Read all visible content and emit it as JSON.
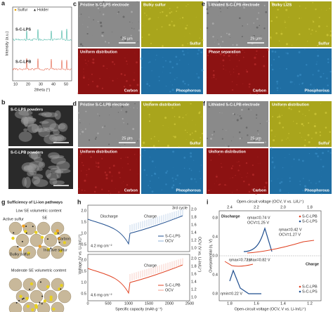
{
  "a": {
    "label": "a",
    "legend": [
      "Sulfur",
      "Holder"
    ],
    "series": [
      "S-C-LPS",
      "S-C-LPB"
    ],
    "xlabel": "2theta (°)",
    "ylabel": "Intensity (a.u.)",
    "xticks": [
      "10",
      "20",
      "30",
      "40",
      "50"
    ]
  },
  "b": {
    "label": "b",
    "images": [
      "S-C-LPS powders",
      "S-C-LPB powders"
    ]
  },
  "c": {
    "label": "c",
    "tiles": [
      {
        "top": "Pristine S-C-LPS electrode",
        "scale": "25 µm"
      },
      {
        "top": "Bulky sulfur",
        "bottom": "Sulfur"
      },
      {
        "top": "Uniform distribution",
        "bottom": "Carbon"
      },
      {
        "bottom": "Phosphorous"
      }
    ]
  },
  "d": {
    "label": "d",
    "tiles": [
      {
        "top": "Pristine S-C-LPB electrode",
        "scale": "25 µm"
      },
      {
        "top": "Uniform distribution",
        "bottom": "Sulfur"
      },
      {
        "top": "Uniform distribution",
        "bottom": "Carbon"
      },
      {
        "bottom": "Phosphorous"
      }
    ]
  },
  "e": {
    "label": "e",
    "tiles": [
      {
        "top": "Lithiated S-C-LPS electrode",
        "scale": "25 µm"
      },
      {
        "top": "Bulky Li2S",
        "bottom": "Sulfur"
      },
      {
        "top": "Phase separation",
        "bottom": "Carbon"
      },
      {
        "bottom": "Phosphorous"
      }
    ]
  },
  "f": {
    "label": "f",
    "tiles": [
      {
        "top": "Lithiated S-C-LPB electrode",
        "scale": "25 µm"
      },
      {
        "top": "Uniform distribution",
        "bottom": "Sulfur"
      },
      {
        "top": "Uniform distribution",
        "bottom": "Carbon"
      },
      {
        "bottom": "Phosphorous"
      }
    ]
  },
  "g": {
    "label": "g",
    "title": "Sufficiency of Li-ion pathways",
    "sub1": "Low SE volumetric content",
    "sub2": "Moderate SE volumetric content",
    "labels": [
      "Active sulfur",
      "SE",
      "Carbon",
      "Inactive sulfur",
      "Bulky sulfur"
    ]
  },
  "h": {
    "label": "h",
    "cycle": "3rd cycle",
    "top": {
      "discharge": "Discharge",
      "charge": "Charge",
      "loading": "4.2 mg cm⁻²",
      "legend": [
        "S-C-LPS",
        "OCV"
      ]
    },
    "bottom": {
      "charge": "Charge",
      "loading": "4.6 mg cm⁻²",
      "legend": [
        "S-C-LPB",
        "OCV"
      ]
    },
    "xlabel": "Specific capacity (mAh g⁻¹)",
    "ylabel": "Voltage (V vs. Li-In/Li⁺)",
    "y2label": "OCV (V vs. Li-In/Li⁺)",
    "xticks": [
      "0",
      "500",
      "1000",
      "1500",
      "2000",
      "2500"
    ],
    "yticks": [
      "2.0",
      "1.5",
      "1.0",
      "0.5"
    ],
    "y2ticks": [
      "2.0",
      "1.8",
      "1.6",
      "1.4",
      "1.2",
      "1.0"
    ]
  },
  "i": {
    "label": "i",
    "top_xlabel": "Open-circuit voltage (OCV, V vs. Li/Li⁺)",
    "xlabel": "Open-circuit voltage (OCV, V vs. Li-In/Li⁺)",
    "ylabel": "Overpotential (η, V)",
    "xticks": [
      "1.8",
      "1.6",
      "1.4",
      "1.2"
    ],
    "top_xticks": [
      "2.4",
      "2.2",
      "2.0",
      "1.8"
    ],
    "yticks": [
      "0.8",
      "0.4",
      "0.0",
      "0.4",
      "0.8"
    ],
    "annotations": [
      "Discharge",
      "Charge",
      "ηmax=0.74 V",
      "OCV=1.25 V",
      "ηmax=0.42 V",
      "OCV=1.27 V",
      "ηmax=0.72 V",
      "ηmax=0.82 V",
      "ηmin=0.22 V"
    ],
    "legend_top": [
      "S-C-LPB",
      "S-C-LPS"
    ],
    "legend_bottom": [
      "S-C-LPB",
      "S-C-LPS"
    ]
  }
}
